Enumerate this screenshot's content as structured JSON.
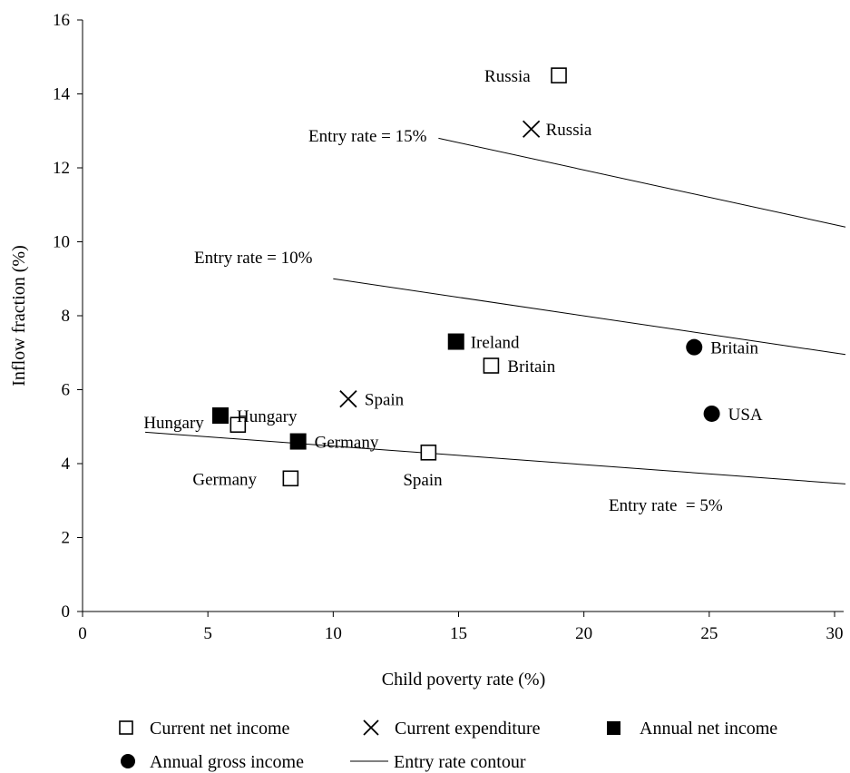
{
  "chart_data": {
    "type": "scatter",
    "xlabel": "Child poverty rate (%)",
    "ylabel": "Inflow fraction (%)",
    "xlim": [
      0,
      30
    ],
    "ylim": [
      0,
      16
    ],
    "x_ticks": [
      "0",
      "5",
      "10",
      "15",
      "20",
      "25",
      "30"
    ],
    "y_ticks": [
      "0",
      "2",
      "4",
      "6",
      "8",
      "10",
      "12",
      "14",
      "16"
    ],
    "grid": false,
    "legend_position": "bottom",
    "series": [
      {
        "name": "Current net income",
        "marker": "open-square",
        "points": [
          {
            "label": "Russia",
            "x": 19.0,
            "y": 14.5
          },
          {
            "label": "Britain",
            "x": 16.3,
            "y": 6.65
          },
          {
            "label": "Spain",
            "x": 13.8,
            "y": 4.3
          },
          {
            "label": "Hungary",
            "x": 6.2,
            "y": 5.05
          },
          {
            "label": "Germany",
            "x": 8.3,
            "y": 3.6
          }
        ]
      },
      {
        "name": "Current expenditure",
        "marker": "x",
        "points": [
          {
            "label": "Russia",
            "x": 17.9,
            "y": 13.05
          },
          {
            "label": "Spain",
            "x": 10.6,
            "y": 5.75
          }
        ]
      },
      {
        "name": "Annual net income",
        "marker": "filled-square",
        "points": [
          {
            "label": "Ireland",
            "x": 14.9,
            "y": 7.3
          },
          {
            "label": "Hungary",
            "x": 5.5,
            "y": 5.3
          },
          {
            "label": "Germany",
            "x": 8.6,
            "y": 4.6
          }
        ]
      },
      {
        "name": "Annual gross income",
        "marker": "filled-circle",
        "points": [
          {
            "label": "Britain",
            "x": 24.4,
            "y": 7.15
          },
          {
            "label": "USA",
            "x": 25.1,
            "y": 5.35
          }
        ]
      }
    ],
    "contour_legend": "Entry rate contour",
    "contours": [
      {
        "label": "Entry rate = 15%",
        "points": [
          [
            14.2,
            12.8
          ],
          [
            30.5,
            10.4
          ]
        ]
      },
      {
        "label": "Entry rate = 10%",
        "points": [
          [
            10.0,
            9.0
          ],
          [
            30.5,
            6.95
          ]
        ]
      },
      {
        "label": "Entry rate  = 5%",
        "points": [
          [
            2.5,
            4.85
          ],
          [
            30.5,
            3.45
          ]
        ]
      }
    ]
  }
}
